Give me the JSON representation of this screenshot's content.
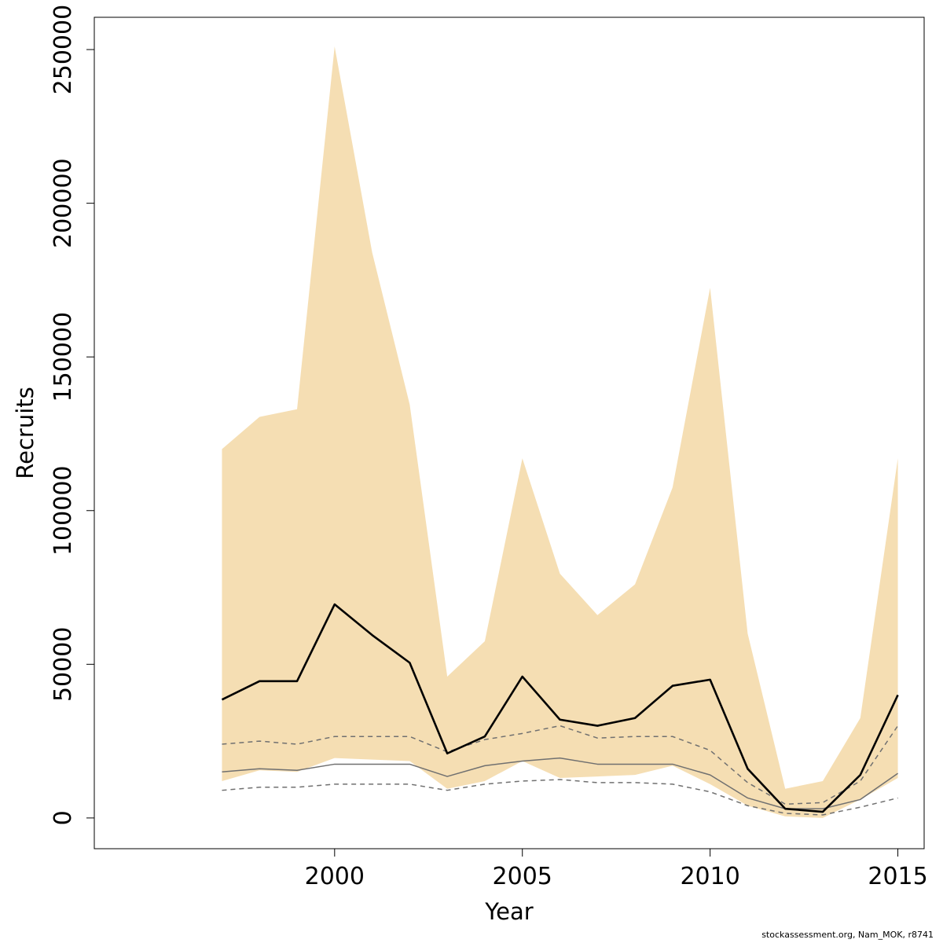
{
  "chart_data": {
    "type": "line",
    "title": "",
    "xlabel": "Year",
    "ylabel": "Recruits",
    "x": [
      1997,
      1998,
      1999,
      2000,
      2001,
      2002,
      2003,
      2004,
      2005,
      2006,
      2007,
      2008,
      2009,
      2010,
      2011,
      2012,
      2013,
      2014,
      2015
    ],
    "xlim": [
      1993.6,
      2015.7
    ],
    "ylim": [
      -10000,
      260500
    ],
    "x_ticks": [
      "2000",
      "2005",
      "2010",
      "2015"
    ],
    "y_ticks": [
      "0",
      "50000",
      "100000",
      "150000",
      "200000",
      "250000"
    ],
    "grid": false,
    "band": {
      "upper": [
        120000,
        130500,
        133000,
        251000,
        184000,
        134500,
        46000,
        57500,
        117000,
        79500,
        66000,
        76000,
        107500,
        172500,
        60000,
        9500,
        12000,
        32500,
        117000
      ],
      "lower": [
        12000,
        15500,
        15000,
        19500,
        19000,
        18500,
        9500,
        12000,
        18500,
        13000,
        13500,
        14000,
        17000,
        11000,
        4000,
        500,
        0,
        6000,
        13000
      ],
      "color": "#f5deb3"
    },
    "series": [
      {
        "values": [
          38500,
          44500,
          44500,
          69500,
          59500,
          50500,
          21000,
          26500,
          46000,
          32000,
          30000,
          32500,
          43000,
          45000,
          16000,
          3000,
          2000,
          14000,
          40000
        ],
        "color": "#000000",
        "style": "solid-thick"
      },
      {
        "values": [
          24000,
          25000,
          24000,
          26500,
          26500,
          26500,
          21500,
          25500,
          27500,
          30000,
          26000,
          26500,
          26500,
          22000,
          11500,
          4500,
          5000,
          12000,
          30000
        ],
        "color": "#707070",
        "style": "dashed"
      },
      {
        "values": [
          15000,
          16000,
          15500,
          17500,
          17500,
          17500,
          13500,
          17000,
          18500,
          19500,
          17500,
          17500,
          17500,
          14000,
          6500,
          3000,
          3000,
          6000,
          14500
        ],
        "color": "#707070",
        "style": "solid-thin"
      },
      {
        "values": [
          9000,
          10000,
          10000,
          11000,
          11000,
          11000,
          9000,
          11000,
          12000,
          12500,
          11500,
          11500,
          11000,
          8500,
          4000,
          1500,
          1000,
          3500,
          6500
        ],
        "color": "#707070",
        "style": "dashed"
      }
    ]
  },
  "credit": "stockassessment.org, Nam_MOK, r8741"
}
